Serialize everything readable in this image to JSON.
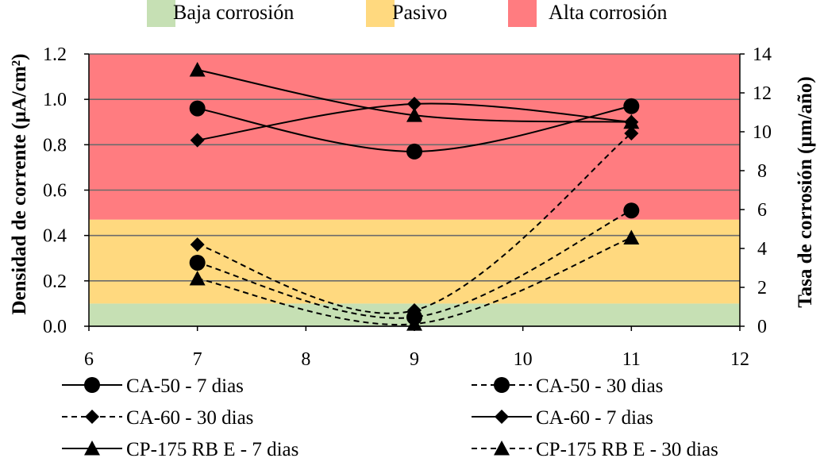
{
  "chart_data": {
    "type": "line",
    "x": [
      7,
      9,
      11
    ],
    "xlim": [
      6,
      12
    ],
    "x_ticks": [
      6,
      7,
      8,
      9,
      10,
      11,
      12
    ],
    "ylabel": "Densidad de corrente (µA/cm²)",
    "ylim": [
      0,
      1.2
    ],
    "y_ticks": [
      "0.0",
      "0.2",
      "0.4",
      "0.6",
      "0.8",
      "1.0",
      "1.2"
    ],
    "y2label": "Tasa de corrosión (µm/año)",
    "y2lim": [
      0,
      14
    ],
    "y2_ticks": [
      "0",
      "2",
      "4",
      "6",
      "8",
      "10",
      "12",
      "14"
    ],
    "bands": [
      {
        "label": "Baja corrosión",
        "from": 0,
        "to": 0.1,
        "color": "#c6e0b4"
      },
      {
        "label": "Pasivo",
        "from": 0.1,
        "to": 0.47,
        "color": "#ffd97f"
      },
      {
        "label": "Alta corrosión",
        "from": 0.47,
        "to": 1.2,
        "color": "#ff7c80"
      }
    ],
    "series": [
      {
        "name": "CA-50 - 7 dias",
        "values": [
          0.96,
          0.77,
          0.97
        ],
        "marker": "circle",
        "dash": false
      },
      {
        "name": "CA-50 - 30 dias",
        "values": [
          0.28,
          0.04,
          0.51
        ],
        "marker": "circle",
        "dash": true
      },
      {
        "name": "CA-60 - 30 dias",
        "values": [
          0.36,
          0.07,
          0.85
        ],
        "marker": "diamond",
        "dash": true
      },
      {
        "name": "CA-60 - 7 dias",
        "values": [
          0.82,
          0.98,
          0.9
        ],
        "marker": "diamond",
        "dash": false
      },
      {
        "name": "CP-175 RB E - 7 dias",
        "values": [
          1.13,
          0.93,
          0.9
        ],
        "marker": "triangle",
        "dash": false
      },
      {
        "name": "CP-175 RB E - 30 dias",
        "values": [
          0.21,
          0.01,
          0.39
        ],
        "marker": "triangle",
        "dash": true
      }
    ]
  }
}
